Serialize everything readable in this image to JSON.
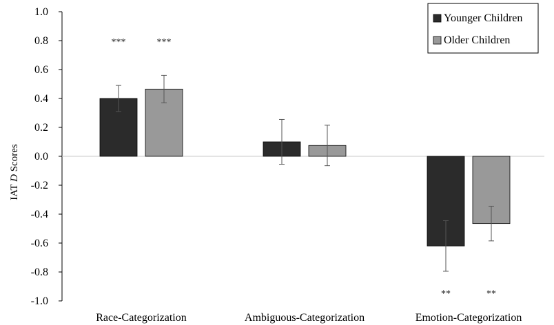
{
  "chart_data": {
    "type": "bar",
    "categories": [
      "Race-Categorization",
      "Ambiguous-Categorization",
      "Emotion-Categorization"
    ],
    "series": [
      {
        "name": "Younger Children",
        "color": "#2b2b2b",
        "values": [
          0.4,
          0.1,
          -0.62
        ],
        "error": [
          0.09,
          0.155,
          0.175
        ],
        "significance": [
          "***",
          "",
          "**"
        ]
      },
      {
        "name": "Older Children",
        "color": "#999999",
        "values": [
          0.465,
          0.075,
          -0.465
        ],
        "error": [
          0.095,
          0.14,
          0.12
        ],
        "significance": [
          "***",
          "",
          "**"
        ]
      }
    ],
    "ylabel_prefix": "IAT ",
    "ylabel_italic": "D",
    "ylabel_suffix": " Scores",
    "ylim": [
      -1.0,
      1.0
    ],
    "yticks": [
      "1.0",
      "0.8",
      "0.6",
      "0.4",
      "0.2",
      "0.0",
      "-0.2",
      "-0.4",
      "-0.6",
      "-0.8",
      "-1.0"
    ],
    "legend_position": "top-right",
    "grid": false
  }
}
